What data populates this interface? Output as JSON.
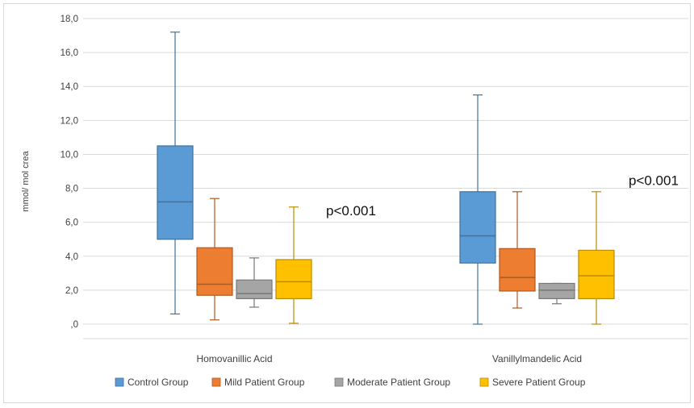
{
  "chart_data": {
    "type": "box",
    "ylabel": "mmol/ mol crea",
    "ylim": [
      0,
      18
    ],
    "yticks": [
      0,
      2,
      4,
      6,
      8,
      10,
      12,
      14,
      16,
      18
    ],
    "ytick_labels": [
      ",0",
      "2,0",
      "4,0",
      "6,0",
      "8,0",
      "10,0",
      "12,0",
      "14,0",
      "16,0",
      "18,0"
    ],
    "grid": "horizontal",
    "legend": "bottom",
    "categories": [
      "Homovanillic Acid",
      "Vanillylmandelic Acid"
    ],
    "series": [
      {
        "name": "Control Group",
        "color": "#5b9bd5",
        "stroke": "#41719c",
        "boxes": [
          {
            "min": 0.6,
            "q1": 5.0,
            "median": 7.2,
            "q3": 10.5,
            "max": 17.2
          },
          {
            "min": 0.0,
            "q1": 3.6,
            "median": 5.2,
            "q3": 7.8,
            "max": 13.5
          }
        ]
      },
      {
        "name": "Mild Patient Group",
        "color": "#ed7d31",
        "stroke": "#ae5a21",
        "boxes": [
          {
            "min": 0.25,
            "q1": 1.7,
            "median": 2.35,
            "q3": 4.5,
            "max": 7.4
          },
          {
            "min": 0.95,
            "q1": 1.95,
            "median": 2.75,
            "q3": 4.45,
            "max": 7.8
          }
        ]
      },
      {
        "name": "Moderate Patient Group",
        "color": "#a5a5a5",
        "stroke": "#787878",
        "boxes": [
          {
            "min": 1.0,
            "q1": 1.5,
            "median": 1.8,
            "q3": 2.6,
            "max": 3.9
          },
          {
            "min": 1.2,
            "q1": 1.5,
            "median": 2.0,
            "q3": 2.4,
            "max": 2.4
          }
        ]
      },
      {
        "name": "Severe Patient Group",
        "color": "#ffc000",
        "stroke": "#bc8c00",
        "boxes": [
          {
            "min": 0.05,
            "q1": 1.5,
            "median": 2.5,
            "q3": 3.8,
            "max": 6.9
          },
          {
            "min": 0.0,
            "q1": 1.5,
            "median": 2.85,
            "q3": 4.35,
            "max": 7.8
          }
        ]
      }
    ],
    "annotations": [
      {
        "text": "p<0.001",
        "category": "Homovanillic Acid",
        "y": 6.4
      },
      {
        "text": "p<0.001",
        "category": "Vanillylmandelic Acid",
        "y": 8.2
      }
    ]
  }
}
